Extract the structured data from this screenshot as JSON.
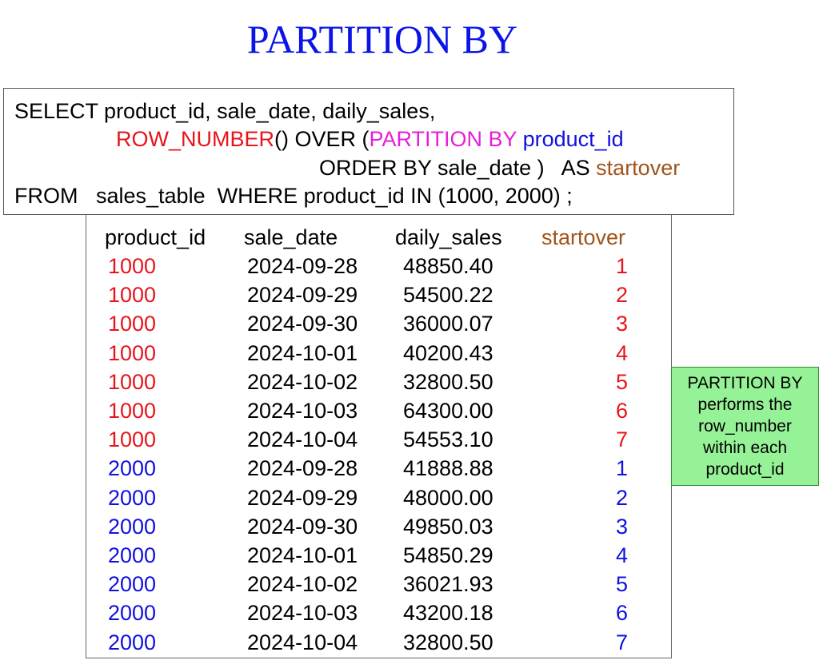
{
  "title": "PARTITION BY",
  "colors": {
    "title": "#0a14e6",
    "keyword_row_number": "#e8141c",
    "keyword_partition_by": "#e620d8",
    "partition_column": "#1010e0",
    "alias": "#a0541a",
    "group_1000": "#e8141c",
    "group_2000": "#1010e0",
    "note_background": "#96f296"
  },
  "sql": {
    "line1": "SELECT product_id, sale_date, daily_sales,",
    "line2_row_number": "ROW_NUMBER",
    "line2_over": "() OVER (",
    "line2_partition_by": "PARTITION BY",
    "line2_space": " ",
    "line2_product_id": "product_id",
    "line3_order_by": "ORDER BY sale_date )   AS ",
    "line3_alias": "startover",
    "line4": "FROM   sales_table  WHERE product_id IN (1000, 2000) ;"
  },
  "result": {
    "headers": {
      "product_id": "product_id",
      "sale_date": "sale_date",
      "daily_sales": "daily_sales",
      "startover": "startover"
    },
    "rows": [
      {
        "product_id": "1000",
        "sale_date": "2024-09-28",
        "daily_sales": "48850.40",
        "startover": "1"
      },
      {
        "product_id": "1000",
        "sale_date": "2024-09-29",
        "daily_sales": "54500.22",
        "startover": "2"
      },
      {
        "product_id": "1000",
        "sale_date": "2024-09-30",
        "daily_sales": "36000.07",
        "startover": "3"
      },
      {
        "product_id": "1000",
        "sale_date": "2024-10-01",
        "daily_sales": "40200.43",
        "startover": "4"
      },
      {
        "product_id": "1000",
        "sale_date": "2024-10-02",
        "daily_sales": "32800.50",
        "startover": "5"
      },
      {
        "product_id": "1000",
        "sale_date": "2024-10-03",
        "daily_sales": "64300.00",
        "startover": "6"
      },
      {
        "product_id": "1000",
        "sale_date": "2024-10-04",
        "daily_sales": "54553.10",
        "startover": "7"
      },
      {
        "product_id": "2000",
        "sale_date": "2024-09-28",
        "daily_sales": "41888.88",
        "startover": "1"
      },
      {
        "product_id": "2000",
        "sale_date": "2024-09-29",
        "daily_sales": "48000.00",
        "startover": "2"
      },
      {
        "product_id": "2000",
        "sale_date": "2024-09-30",
        "daily_sales": "49850.03",
        "startover": "3"
      },
      {
        "product_id": "2000",
        "sale_date": "2024-10-01",
        "daily_sales": "54850.29",
        "startover": "4"
      },
      {
        "product_id": "2000",
        "sale_date": "2024-10-02",
        "daily_sales": "36021.93",
        "startover": "5"
      },
      {
        "product_id": "2000",
        "sale_date": "2024-10-03",
        "daily_sales": "43200.18",
        "startover": "6"
      },
      {
        "product_id": "2000",
        "sale_date": "2024-10-04",
        "daily_sales": "32800.50",
        "startover": "7"
      }
    ]
  },
  "note": {
    "text": "PARTITION BY\nperforms the\nrow_number\nwithin each\nproduct_id"
  }
}
